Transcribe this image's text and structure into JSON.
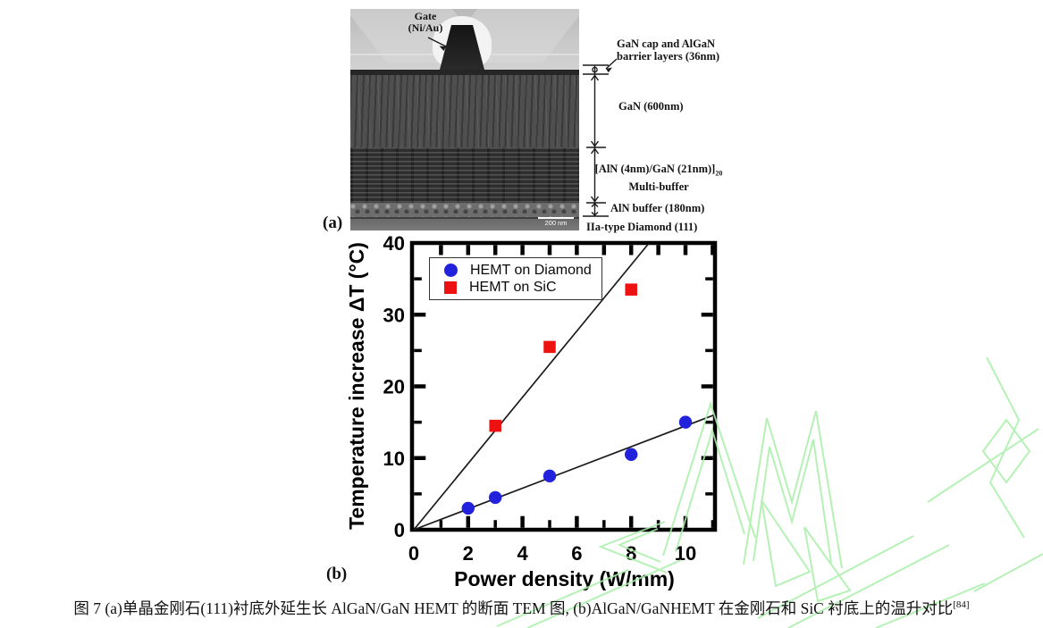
{
  "panel_a": {
    "label": "(a)",
    "gate_label": {
      "line1": "Gate",
      "line2": "(Ni/Au)"
    },
    "scale_bar": "200 nm",
    "layers": {
      "cap_line1": "GaN cap and AlGaN",
      "cap_line2": "barrier layers (36nm)",
      "gan": "GaN (600nm)",
      "multibuffer_formula": "[AlN (4nm)/GaN (21nm)]",
      "multibuffer_subscript": "20",
      "multibuffer_name": "Multi-buffer",
      "aln_buffer": "AlN buffer (180nm)",
      "substrate": "IIa-type Diamond (111)"
    }
  },
  "panel_b": {
    "label": "(b)"
  },
  "caption": {
    "text": "图 7 (a)单晶金刚石(111)衬底外延生长 AlGaN/GaN HEMT 的断面 TEM 图, (b)AlGaN/GaNHEMT 在金刚石和 SiC 衬底上的温升对比",
    "reference": "[84]"
  },
  "watermark": {
    "color": "#a9efa9"
  },
  "chart_data": {
    "type": "scatter",
    "title": "",
    "xlabel": "Power density (W/mm)",
    "ylabel": "Temperature increase ΔT (°C)",
    "xlim": [
      0,
      11.1
    ],
    "ylim": [
      0,
      40
    ],
    "grid": false,
    "legend_position": "upper-left",
    "x_major_ticks": [
      0,
      2,
      4,
      6,
      8,
      10
    ],
    "x_minor_ticks": [
      1,
      3,
      5,
      7,
      9,
      11
    ],
    "y_major_ticks": [
      0,
      10,
      20,
      30,
      40
    ],
    "y_minor_ticks": [
      5,
      15,
      25,
      35
    ],
    "series": [
      {
        "name": "HEMT on Diamond",
        "marker": "circle",
        "color": "#2222dd",
        "points": [
          [
            2,
            3
          ],
          [
            3,
            4.5
          ],
          [
            5,
            7.5
          ],
          [
            8,
            10.5
          ],
          [
            10,
            15
          ]
        ],
        "fit_line": {
          "x1": 0,
          "y1": 0,
          "x2": 11.05,
          "y2": 16
        }
      },
      {
        "name": "HEMT on SiC",
        "marker": "square",
        "color": "#ee1111",
        "points": [
          [
            3,
            14.5
          ],
          [
            5,
            25.5
          ],
          [
            8,
            33.5
          ]
        ],
        "fit_line": {
          "x1": 0,
          "y1": 0,
          "x2": 8.66,
          "y2": 40
        }
      }
    ]
  }
}
